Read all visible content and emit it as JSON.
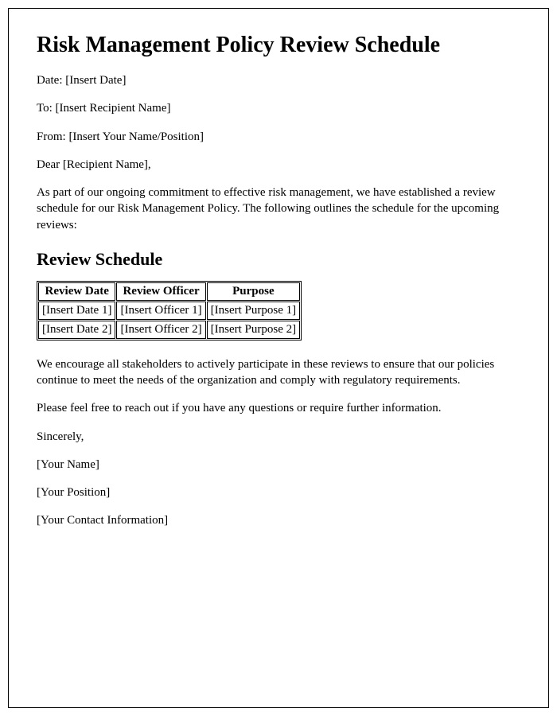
{
  "title": "Risk Management Policy Review Schedule",
  "header_fields": {
    "date_label": "Date: ",
    "date_value": "[Insert Date]",
    "to_label": "To: ",
    "to_value": "[Insert Recipient Name]",
    "from_label": "From: ",
    "from_value": "[Insert Your Name/Position]"
  },
  "salutation": "Dear [Recipient Name],",
  "intro_paragraph": "As part of our ongoing commitment to effective risk management, we have established a review schedule for our Risk Management Policy. The following outlines the schedule for the upcoming reviews:",
  "schedule_heading": "Review Schedule",
  "table": {
    "columns": [
      "Review Date",
      "Review Officer",
      "Purpose"
    ],
    "rows": [
      [
        "[Insert Date 1]",
        "[Insert Officer 1]",
        "[Insert Purpose 1]"
      ],
      [
        "[Insert Date 2]",
        "[Insert Officer 2]",
        "[Insert Purpose 2]"
      ]
    ]
  },
  "closing_paragraph_1": "We encourage all stakeholders to actively participate in these reviews to ensure that our policies continue to meet the needs of the organization and comply with regulatory requirements.",
  "closing_paragraph_2": "Please feel free to reach out if you have any questions or require further information.",
  "signoff": {
    "sincerely": "Sincerely,",
    "name": "[Your Name]",
    "position": "[Your Position]",
    "contact": "[Your Contact Information]"
  },
  "colors": {
    "text": "#000000",
    "background": "#ffffff",
    "border": "#000000"
  }
}
